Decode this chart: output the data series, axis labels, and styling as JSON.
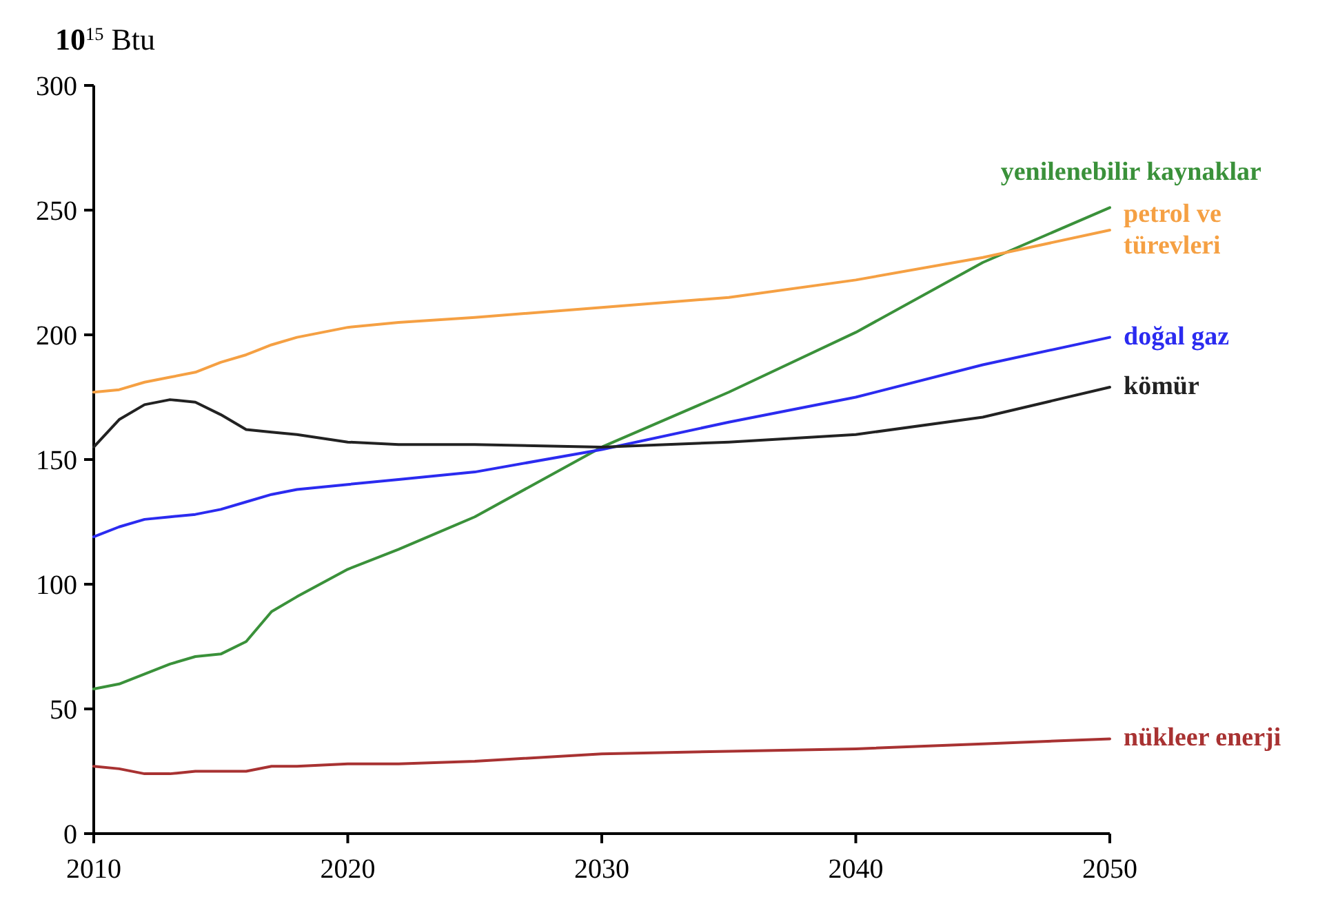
{
  "chart_data": {
    "type": "line",
    "ylabel": "10$^{15}$ Btu",
    "x": [
      2010,
      2011,
      2012,
      2013,
      2014,
      2015,
      2016,
      2017,
      2018,
      2020,
      2022,
      2025,
      2030,
      2035,
      2040,
      2045,
      2050
    ],
    "series": [
      {
        "name": "yenilenebilir kaynaklar",
        "color": "#3a913a",
        "values": [
          58,
          60,
          64,
          68,
          71,
          72,
          77,
          89,
          95,
          106,
          114,
          127,
          155,
          177,
          201,
          229,
          251
        ]
      },
      {
        "name": "petrol ve türevleri",
        "color": "#f5a043",
        "values": [
          177,
          178,
          181,
          183,
          185,
          189,
          192,
          196,
          199,
          203,
          205,
          207,
          211,
          215,
          222,
          231,
          242
        ]
      },
      {
        "name": "doğal gaz",
        "color": "#2b2bf0",
        "values": [
          119,
          123,
          126,
          127,
          128,
          130,
          133,
          136,
          138,
          140,
          142,
          145,
          154,
          165,
          175,
          188,
          199
        ]
      },
      {
        "name": "kömür",
        "color": "#222222",
        "values": [
          155,
          166,
          172,
          174,
          173,
          168,
          162,
          161,
          160,
          157,
          156,
          156,
          155,
          157,
          160,
          167,
          179
        ]
      },
      {
        "name": "nükleer enerji",
        "color": "#a83232",
        "values": [
          27,
          26,
          24,
          24,
          25,
          25,
          25,
          27,
          27,
          28,
          28,
          29,
          32,
          33,
          34,
          36,
          38
        ]
      }
    ],
    "xlim": [
      2010,
      2050
    ],
    "xticks": [
      2010,
      2020,
      2030,
      2040,
      2050
    ],
    "ylim": [
      0,
      300
    ],
    "yticks": [
      0,
      50,
      100,
      150,
      200,
      250,
      300
    ],
    "grid": false,
    "marker": "none",
    "line_style": "solid"
  }
}
